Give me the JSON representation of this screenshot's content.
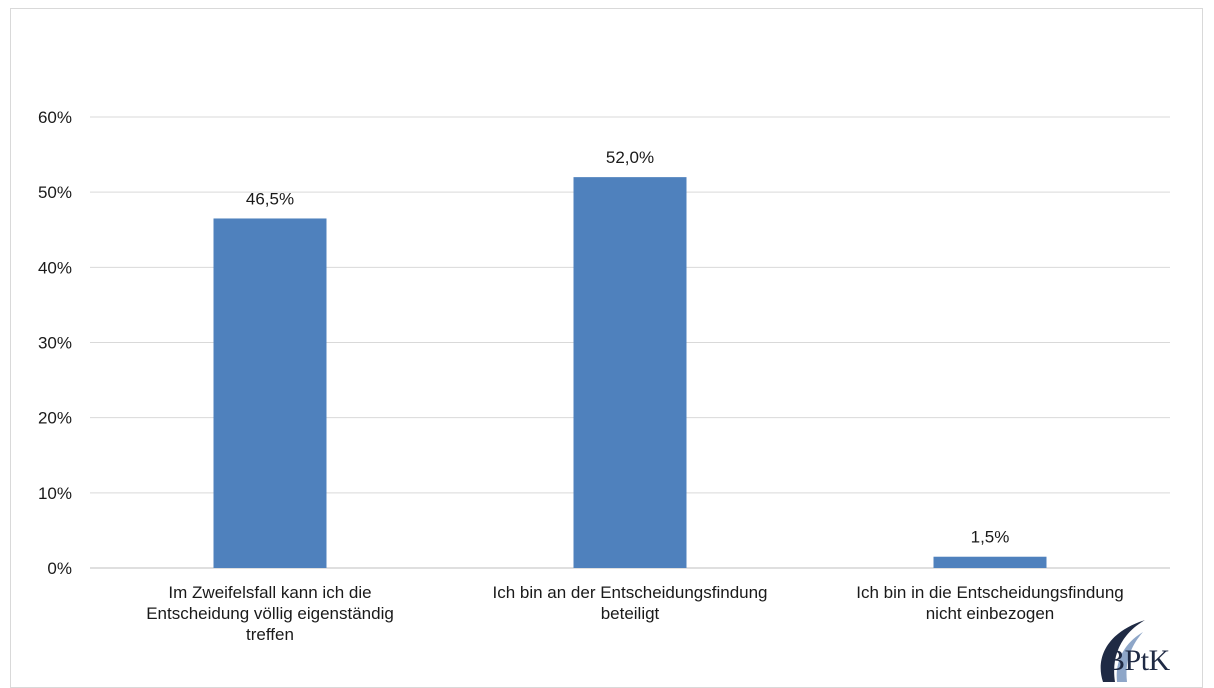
{
  "chart_data": {
    "type": "bar",
    "title": "",
    "xlabel": "",
    "ylabel": "",
    "categories": [
      [
        "Im Zweifelsfall kann ich die",
        "Entscheidung völlig eigenständig",
        "treffen"
      ],
      [
        "Ich bin an der Entscheidungsfindung",
        "beteiligt"
      ],
      [
        "Ich bin in die Entscheidungsfindung",
        "nicht einbezogen"
      ]
    ],
    "values": [
      46.5,
      52.0,
      1.5
    ],
    "data_labels": [
      "46,5%",
      "52,0%",
      "1,5%"
    ],
    "ylim": [
      0,
      60
    ],
    "yticks": [
      0,
      10,
      20,
      30,
      40,
      50,
      60
    ],
    "ytick_labels": [
      "0%",
      "10%",
      "20%",
      "30%",
      "40%",
      "50%",
      "60%"
    ],
    "grid": true,
    "bar_color": "#4f81bd"
  },
  "logo": {
    "text": "BPtK"
  }
}
